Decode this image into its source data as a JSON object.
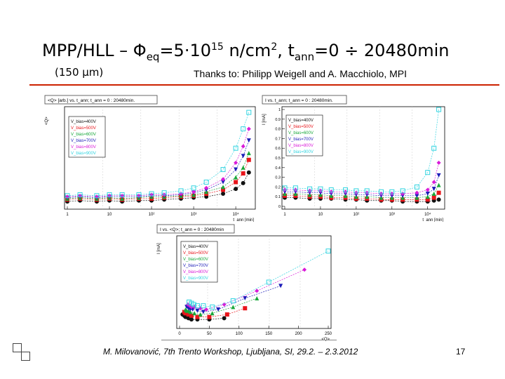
{
  "slide": {
    "title_main": "MPP/HLL – Φ",
    "title_sub": "eq",
    "title_eq": "=5·10",
    "title_exp": "15",
    "title_unit": " n/cm",
    "title_unit_exp": "2",
    "title_comma": ", t",
    "title_t_sub": "ann",
    "title_range": "=0 ÷ 20480min",
    "subtitle": "(150 μm)",
    "thanks": "Thanks to: Philipp Weigell and A. Macchiolo, MPI",
    "footer": "M. Milovanović, 7th Trento Workshop, Ljubljana, SI, 29.2. – 2.3.2012",
    "page_number": "17"
  },
  "colors": {
    "accent_rule": "#cc2200",
    "v400": "#111111",
    "v500": "#e8151b",
    "v600": "#18a83a",
    "v700": "#1c1cb8",
    "v800": "#d91ad9",
    "v900": "#33d4e0"
  },
  "chart_data": [
    {
      "type": "scatter",
      "title": "<Q> [arb.] vs. t_ann; t_ann = 0 : 20480min.",
      "ylabel": "<Q>",
      "xlabel": "t_ann [min]",
      "x_scale": "log",
      "x_ticks": [
        "1",
        "10",
        "10²",
        "10³",
        "10⁴"
      ],
      "legend_placement": "top-left",
      "series": [
        {
          "name": "V_bias=400V",
          "color": "#111111",
          "marker": "circle",
          "x": [
            1,
            2,
            5,
            10,
            20,
            50,
            100,
            200,
            500,
            1000,
            2000,
            5000,
            10000,
            15000,
            20480
          ],
          "y": [
            0.05,
            0.06,
            0.05,
            0.06,
            0.05,
            0.06,
            0.06,
            0.07,
            0.08,
            0.09,
            0.1,
            0.13,
            0.18,
            0.24,
            0.35
          ]
        },
        {
          "name": "V_bias=500V",
          "color": "#e8151b",
          "marker": "square",
          "x": [
            1,
            2,
            5,
            10,
            20,
            50,
            100,
            200,
            500,
            1000,
            2000,
            5000,
            10000,
            15000,
            20480
          ],
          "y": [
            0.07,
            0.08,
            0.07,
            0.08,
            0.07,
            0.08,
            0.08,
            0.09,
            0.1,
            0.11,
            0.13,
            0.17,
            0.25,
            0.34,
            0.48
          ]
        },
        {
          "name": "V_bias=600V",
          "color": "#18a83a",
          "marker": "triangle",
          "x": [
            1,
            2,
            5,
            10,
            20,
            50,
            100,
            200,
            500,
            1000,
            2000,
            5000,
            10000,
            15000,
            20480
          ],
          "y": [
            0.08,
            0.09,
            0.08,
            0.09,
            0.08,
            0.09,
            0.1,
            0.1,
            0.11,
            0.12,
            0.15,
            0.2,
            0.3,
            0.4,
            0.55
          ]
        },
        {
          "name": "V_bias=700V",
          "color": "#1c1cb8",
          "marker": "triangle-down",
          "x": [
            1,
            2,
            5,
            10,
            20,
            50,
            100,
            200,
            500,
            1000,
            2000,
            5000,
            10000,
            15000,
            20480
          ],
          "y": [
            0.09,
            0.1,
            0.09,
            0.1,
            0.1,
            0.1,
            0.11,
            0.11,
            0.12,
            0.14,
            0.17,
            0.25,
            0.38,
            0.52,
            0.68
          ]
        },
        {
          "name": "V_bias=800V",
          "color": "#d91ad9",
          "marker": "diamond",
          "x": [
            1,
            2,
            5,
            10,
            20,
            50,
            100,
            200,
            500,
            1000,
            2000,
            5000,
            10000,
            15000,
            20480
          ],
          "y": [
            0.1,
            0.11,
            0.1,
            0.11,
            0.11,
            0.11,
            0.12,
            0.12,
            0.13,
            0.15,
            0.19,
            0.28,
            0.45,
            0.62,
            0.8
          ]
        },
        {
          "name": "V_bias=900V",
          "color": "#33d4e0",
          "marker": "open-square",
          "x": [
            1,
            2,
            5,
            10,
            20,
            50,
            100,
            200,
            500,
            1000,
            2000,
            5000,
            10000,
            15000,
            20480
          ],
          "y": [
            0.11,
            0.12,
            0.11,
            0.12,
            0.12,
            0.12,
            0.13,
            0.14,
            0.16,
            0.19,
            0.25,
            0.38,
            0.6,
            0.8,
            0.97
          ]
        }
      ]
    },
    {
      "type": "scatter",
      "title": "I vs. t_ann; t_ann = 0 : 20480min.",
      "ylabel": "I [mA]",
      "xlabel": "t_ann [min]",
      "x_scale": "log",
      "x_ticks": [
        "1",
        "10",
        "10²",
        "10³",
        "10⁴"
      ],
      "y_ticks": [
        "0",
        "0.1",
        "0.2",
        "0.3",
        "0.4",
        "0.5",
        "0.6",
        "0.7",
        "0.8",
        "0.9",
        "1"
      ],
      "ylim": [
        0,
        1
      ],
      "legend_placement": "top-left",
      "series": [
        {
          "name": "V_bias=400V",
          "color": "#111111",
          "marker": "circle",
          "x": [
            1,
            2,
            5,
            10,
            20,
            50,
            100,
            200,
            500,
            1000,
            2000,
            5000,
            10000,
            15000,
            20480
          ],
          "y": [
            0.09,
            0.09,
            0.08,
            0.08,
            0.08,
            0.07,
            0.07,
            0.06,
            0.06,
            0.06,
            0.05,
            0.05,
            0.05,
            0.06,
            0.07
          ]
        },
        {
          "name": "V_bias=500V",
          "color": "#e8151b",
          "marker": "square",
          "x": [
            1,
            2,
            5,
            10,
            20,
            50,
            100,
            200,
            500,
            1000,
            2000,
            5000,
            10000,
            15000,
            20480
          ],
          "y": [
            0.11,
            0.11,
            0.1,
            0.1,
            0.09,
            0.09,
            0.08,
            0.08,
            0.07,
            0.07,
            0.07,
            0.07,
            0.07,
            0.09,
            0.14
          ]
        },
        {
          "name": "V_bias=600V",
          "color": "#18a83a",
          "marker": "triangle",
          "x": [
            1,
            2,
            5,
            10,
            20,
            50,
            100,
            200,
            500,
            1000,
            2000,
            5000,
            10000,
            15000,
            20480
          ],
          "y": [
            0.13,
            0.13,
            0.12,
            0.12,
            0.11,
            0.11,
            0.1,
            0.1,
            0.09,
            0.09,
            0.09,
            0.09,
            0.1,
            0.13,
            0.22
          ]
        },
        {
          "name": "V_bias=700V",
          "color": "#1c1cb8",
          "marker": "triangle-down",
          "x": [
            1,
            2,
            5,
            10,
            20,
            50,
            100,
            200,
            500,
            1000,
            2000,
            5000,
            10000,
            15000,
            20480
          ],
          "y": [
            0.15,
            0.15,
            0.14,
            0.14,
            0.13,
            0.13,
            0.12,
            0.12,
            0.11,
            0.11,
            0.11,
            0.11,
            0.13,
            0.18,
            0.32
          ]
        },
        {
          "name": "V_bias=800V",
          "color": "#d91ad9",
          "marker": "diamond",
          "x": [
            1,
            2,
            5,
            10,
            20,
            50,
            100,
            200,
            500,
            1000,
            2000,
            5000,
            10000,
            15000,
            20480
          ],
          "y": [
            0.17,
            0.17,
            0.16,
            0.16,
            0.15,
            0.15,
            0.14,
            0.14,
            0.13,
            0.13,
            0.13,
            0.14,
            0.17,
            0.25,
            0.45
          ]
        },
        {
          "name": "V_bias=900V",
          "color": "#33d4e0",
          "marker": "open-square",
          "x": [
            1,
            2,
            5,
            10,
            20,
            50,
            100,
            200,
            500,
            1000,
            2000,
            5000,
            10000,
            15000,
            20480
          ],
          "y": [
            0.19,
            0.19,
            0.18,
            0.18,
            0.17,
            0.17,
            0.16,
            0.16,
            0.15,
            0.15,
            0.16,
            0.2,
            0.35,
            0.6,
            1.0
          ]
        }
      ]
    },
    {
      "type": "scatter",
      "title": "I vs. <Q>; t_ann = 0 : 20480min",
      "ylabel": "I [mA]",
      "xlabel": "<Q>",
      "x_ticks": [
        "0",
        "50",
        "100",
        "150",
        "200",
        "250"
      ],
      "xlim": [
        0,
        250
      ],
      "legend_placement": "top-left",
      "series": [
        {
          "name": "V_bias=400V",
          "color": "#111111",
          "marker": "circle",
          "x": [
            5,
            8,
            10,
            12,
            15,
            20,
            30,
            50,
            75
          ],
          "y": [
            0.09,
            0.08,
            0.07,
            0.07,
            0.06,
            0.05,
            0.05,
            0.05,
            0.06
          ]
        },
        {
          "name": "V_bias=500V",
          "color": "#e8151b",
          "marker": "square",
          "x": [
            8,
            10,
            12,
            15,
            20,
            30,
            50,
            80,
            110
          ],
          "y": [
            0.11,
            0.1,
            0.1,
            0.09,
            0.08,
            0.07,
            0.07,
            0.09,
            0.14
          ]
        },
        {
          "name": "V_bias=600V",
          "color": "#18a83a",
          "marker": "triangle",
          "x": [
            10,
            12,
            15,
            18,
            25,
            35,
            55,
            90,
            130
          ],
          "y": [
            0.13,
            0.12,
            0.12,
            0.11,
            0.1,
            0.09,
            0.1,
            0.15,
            0.22
          ]
        },
        {
          "name": "V_bias=700V",
          "color": "#1c1cb8",
          "marker": "triangle-down",
          "x": [
            12,
            15,
            18,
            22,
            30,
            40,
            65,
            110,
            170
          ],
          "y": [
            0.15,
            0.14,
            0.13,
            0.13,
            0.12,
            0.11,
            0.13,
            0.22,
            0.32
          ]
        },
        {
          "name": "V_bias=800V",
          "color": "#d91ad9",
          "marker": "diamond",
          "x": [
            14,
            17,
            20,
            25,
            35,
            45,
            75,
            130,
            210
          ],
          "y": [
            0.17,
            0.16,
            0.15,
            0.15,
            0.14,
            0.13,
            0.17,
            0.28,
            0.45
          ]
        },
        {
          "name": "V_bias=900V",
          "color": "#33d4e0",
          "marker": "open-square",
          "x": [
            16,
            20,
            24,
            30,
            40,
            55,
            90,
            150,
            250
          ],
          "y": [
            0.19,
            0.18,
            0.17,
            0.16,
            0.16,
            0.15,
            0.2,
            0.35,
            0.6
          ]
        }
      ]
    }
  ]
}
